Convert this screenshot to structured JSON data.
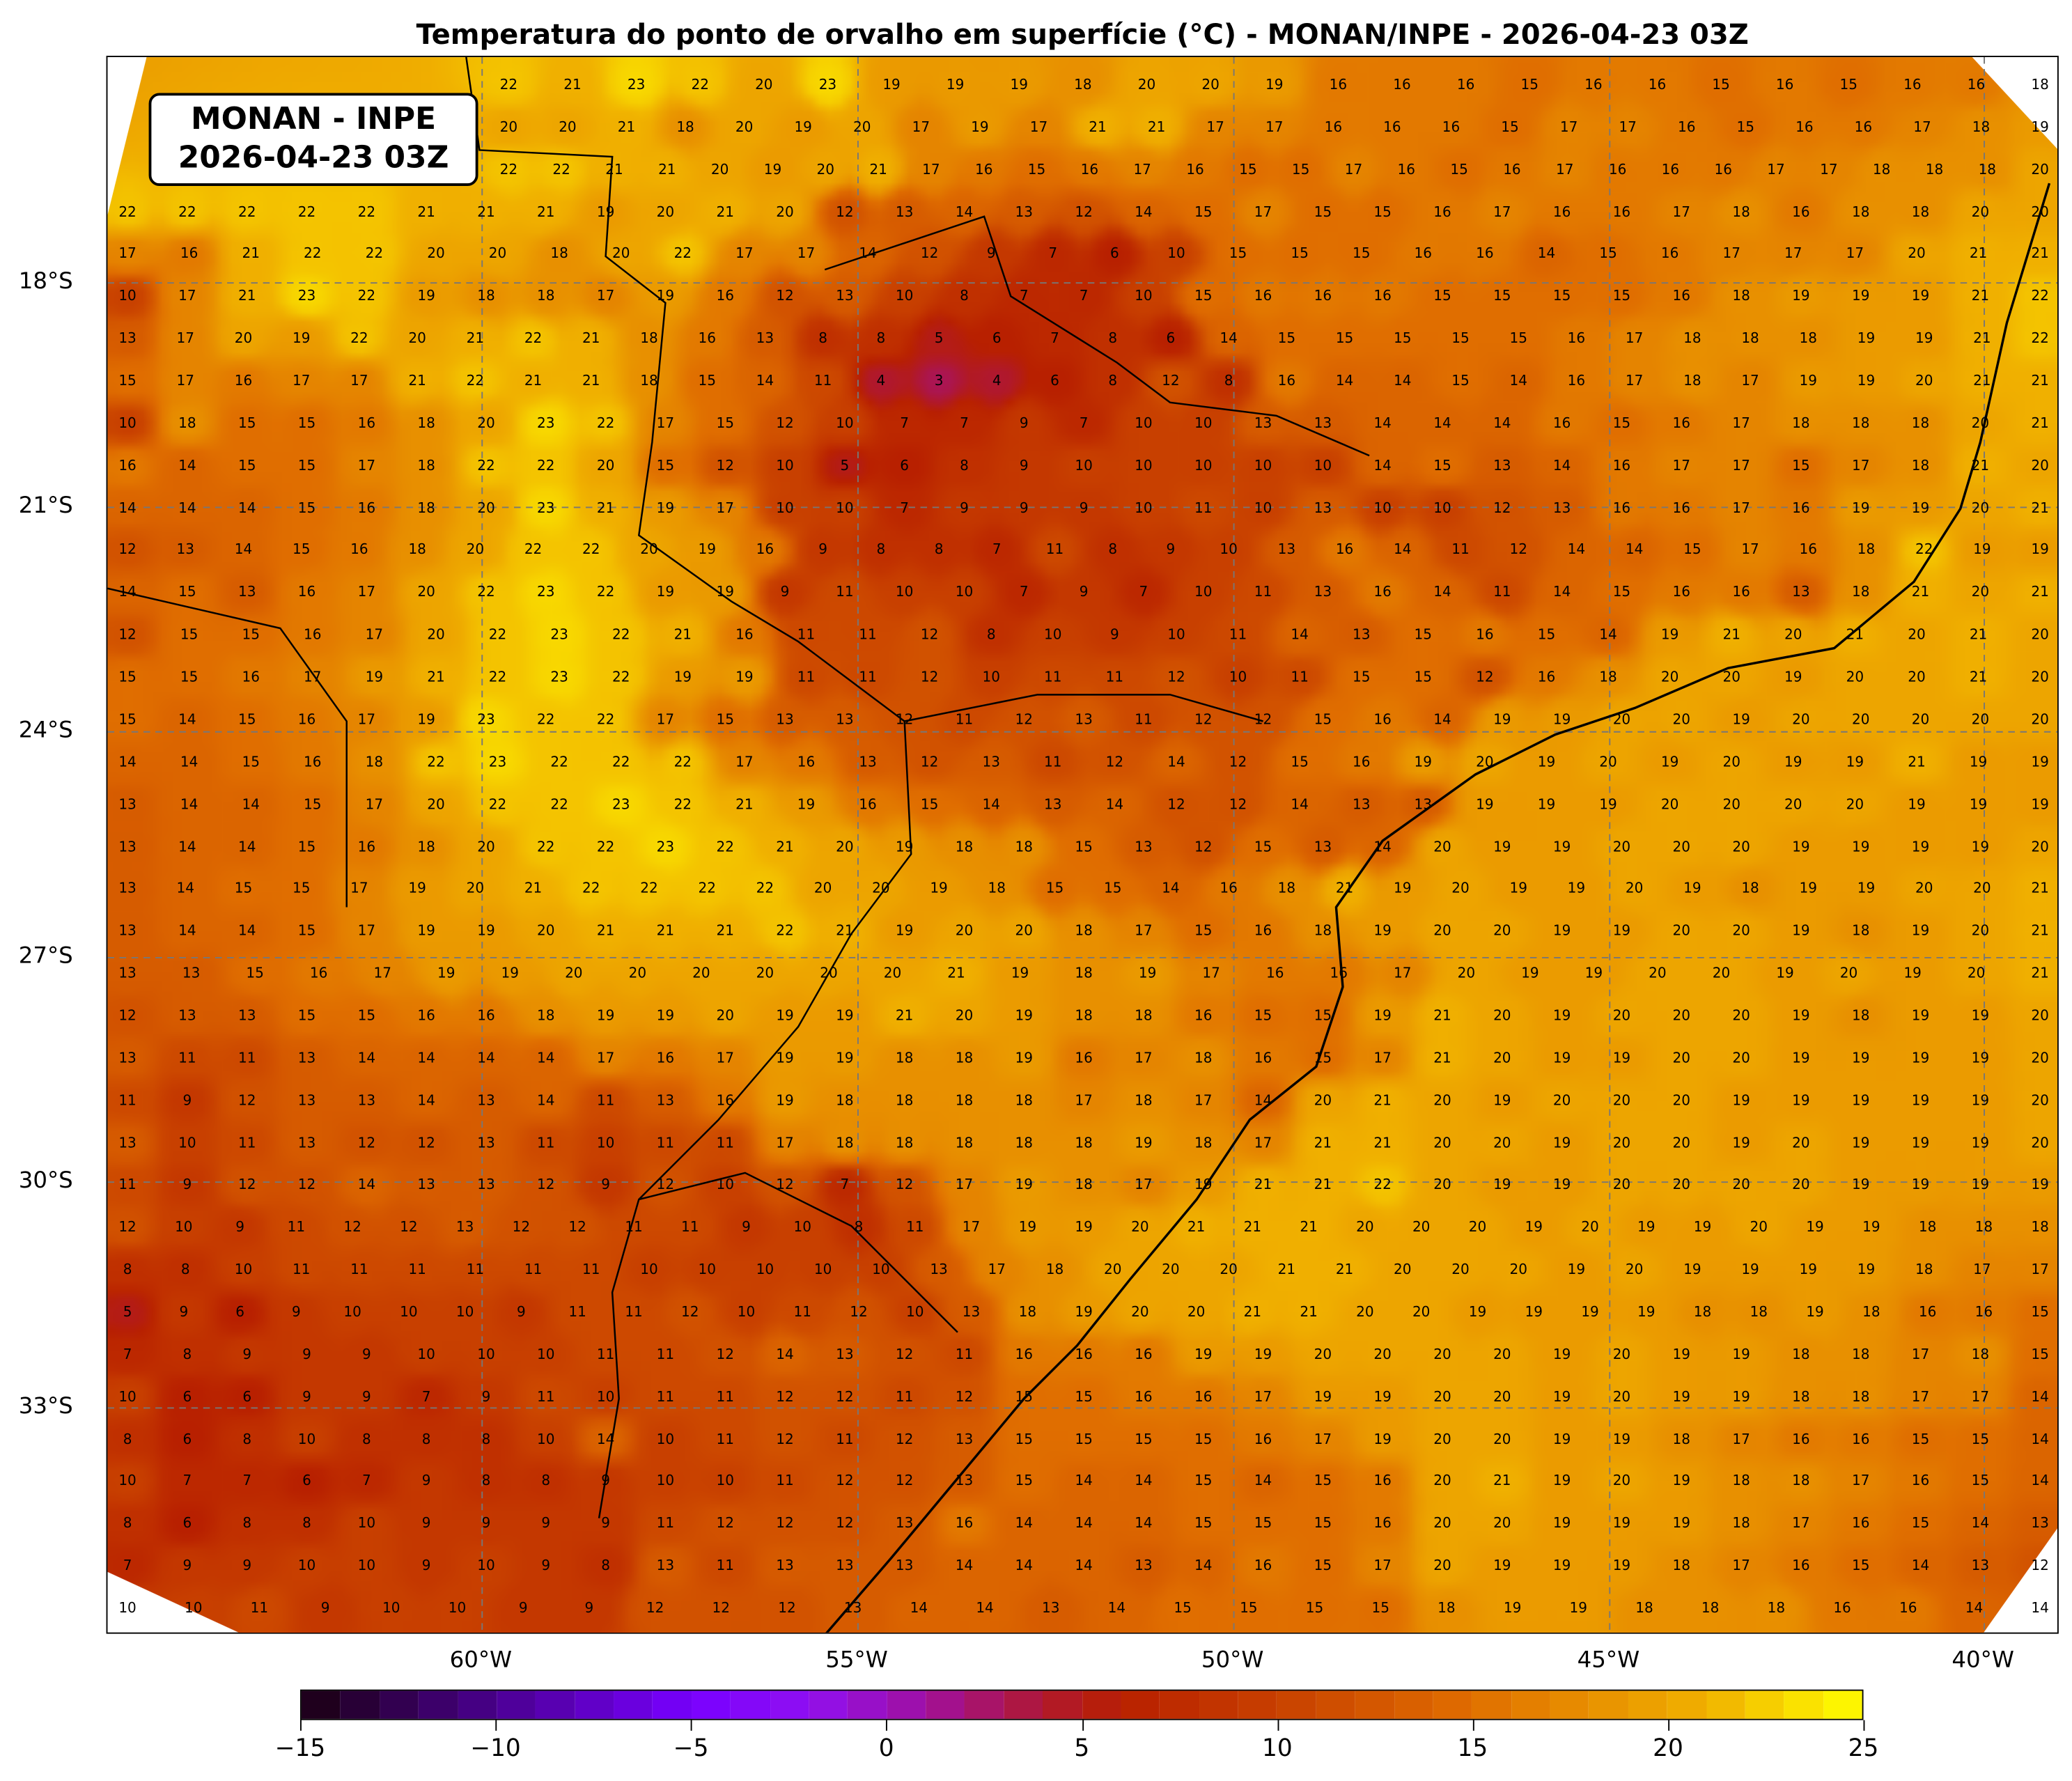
{
  "title": "Temperatura do ponto de orvalho em superfície (°C) - MONAN/INPE - 2026-04-23 03Z",
  "logo": {
    "line1": "MONAN - INPE",
    "line2": "2026-04-23 03Z"
  },
  "map": {
    "latitude_labels": [
      "18°S",
      "21°S",
      "24°S",
      "27°S",
      "30°S",
      "33°S"
    ],
    "longitude_labels": [
      "60°W",
      "55°W",
      "50°W",
      "45°W",
      "40°W"
    ],
    "gridlines": "dashed gray",
    "station_values_rows": [
      [
        22,
        21,
        23,
        22,
        20,
        23,
        19,
        19,
        19,
        18,
        20,
        20,
        19,
        16,
        16,
        16,
        15,
        16,
        16,
        15,
        16,
        15,
        16,
        16,
        18
      ],
      [
        20,
        20,
        21,
        18,
        20,
        19,
        20,
        17,
        19,
        17,
        21,
        21,
        17,
        17,
        16,
        16,
        16,
        15,
        17,
        17,
        16,
        15,
        16,
        16,
        17,
        18,
        19
      ],
      [
        22,
        22,
        21,
        21,
        20,
        19,
        20,
        21,
        17,
        16,
        15,
        16,
        17,
        16,
        15,
        15,
        17,
        16,
        15,
        16,
        17,
        16,
        16,
        16,
        17,
        17,
        18,
        18,
        18,
        20
      ],
      [
        22,
        22,
        22,
        22,
        22,
        21,
        21,
        21,
        19,
        20,
        21,
        20,
        12,
        13,
        14,
        13,
        12,
        14,
        15,
        17,
        15,
        15,
        16,
        17,
        16,
        16,
        17,
        18,
        16,
        18,
        18,
        20,
        20
      ],
      [
        17,
        16,
        21,
        22,
        22,
        20,
        20,
        18,
        20,
        22,
        17,
        17,
        14,
        12,
        9,
        7,
        6,
        10,
        15,
        15,
        15,
        16,
        16,
        14,
        15,
        16,
        17,
        17,
        17,
        20,
        21,
        21
      ],
      [
        10,
        17,
        21,
        23,
        22,
        19,
        18,
        18,
        17,
        19,
        16,
        12,
        13,
        10,
        8,
        7,
        7,
        10,
        15,
        16,
        16,
        16,
        15,
        15,
        15,
        15,
        16,
        18,
        19,
        19,
        19,
        21,
        22
      ],
      [
        13,
        17,
        20,
        19,
        22,
        20,
        21,
        22,
        21,
        18,
        16,
        13,
        8,
        8,
        5,
        6,
        7,
        8,
        6,
        14,
        15,
        15,
        15,
        15,
        15,
        16,
        17,
        18,
        18,
        18,
        19,
        19,
        21,
        22
      ],
      [
        15,
        17,
        16,
        17,
        17,
        21,
        22,
        21,
        21,
        18,
        15,
        14,
        11,
        4,
        3,
        4,
        6,
        8,
        12,
        8,
        16,
        14,
        14,
        15,
        14,
        16,
        17,
        18,
        17,
        19,
        19,
        20,
        21,
        21
      ],
      [
        10,
        18,
        15,
        15,
        16,
        18,
        20,
        23,
        22,
        17,
        15,
        12,
        10,
        7,
        7,
        9,
        7,
        10,
        10,
        13,
        13,
        14,
        14,
        14,
        16,
        15,
        16,
        17,
        18,
        18,
        18,
        20,
        21
      ],
      [
        16,
        14,
        15,
        15,
        17,
        18,
        22,
        22,
        20,
        15,
        12,
        10,
        5,
        6,
        8,
        9,
        10,
        10,
        10,
        10,
        10,
        14,
        15,
        13,
        14,
        16,
        17,
        17,
        15,
        17,
        18,
        21,
        20
      ],
      [
        14,
        14,
        14,
        15,
        16,
        18,
        20,
        23,
        21,
        19,
        17,
        10,
        10,
        7,
        9,
        9,
        9,
        10,
        11,
        10,
        13,
        10,
        10,
        12,
        13,
        16,
        16,
        17,
        16,
        19,
        19,
        20,
        21
      ],
      [
        12,
        13,
        14,
        15,
        16,
        18,
        20,
        22,
        22,
        20,
        19,
        16,
        9,
        8,
        8,
        7,
        11,
        8,
        9,
        10,
        13,
        16,
        14,
        11,
        12,
        14,
        14,
        15,
        17,
        16,
        18,
        22,
        19,
        19
      ],
      [
        14,
        15,
        13,
        16,
        17,
        20,
        22,
        23,
        22,
        19,
        19,
        9,
        11,
        10,
        10,
        7,
        9,
        7,
        10,
        11,
        13,
        16,
        14,
        11,
        14,
        15,
        16,
        16,
        13,
        18,
        21,
        20,
        21
      ],
      [
        12,
        15,
        15,
        16,
        17,
        20,
        22,
        23,
        22,
        21,
        16,
        11,
        11,
        12,
        8,
        10,
        9,
        10,
        11,
        14,
        13,
        15,
        16,
        15,
        14,
        19,
        21,
        20,
        21,
        20,
        21,
        20
      ],
      [
        15,
        15,
        16,
        17,
        19,
        21,
        22,
        23,
        22,
        19,
        19,
        11,
        11,
        12,
        10,
        11,
        11,
        12,
        10,
        11,
        15,
        15,
        12,
        16,
        18,
        20,
        20,
        19,
        20,
        20,
        21,
        20
      ],
      [
        15,
        14,
        15,
        16,
        17,
        19,
        23,
        22,
        22,
        17,
        15,
        13,
        13,
        12,
        11,
        12,
        13,
        11,
        12,
        12,
        15,
        16,
        14,
        19,
        19,
        20,
        20,
        19,
        20,
        20,
        20,
        20,
        20
      ],
      [
        14,
        14,
        15,
        16,
        18,
        22,
        23,
        22,
        22,
        22,
        17,
        16,
        13,
        12,
        13,
        11,
        12,
        14,
        12,
        15,
        16,
        19,
        20,
        19,
        20,
        19,
        20,
        19,
        19,
        21,
        19,
        19
      ],
      [
        13,
        14,
        14,
        15,
        17,
        20,
        22,
        22,
        23,
        22,
        21,
        19,
        16,
        15,
        14,
        13,
        14,
        12,
        12,
        14,
        13,
        13,
        19,
        19,
        19,
        20,
        20,
        20,
        20,
        19,
        19,
        19
      ],
      [
        13,
        14,
        14,
        15,
        16,
        18,
        20,
        22,
        22,
        23,
        22,
        21,
        20,
        19,
        18,
        18,
        15,
        13,
        12,
        15,
        13,
        14,
        20,
        19,
        19,
        20,
        20,
        20,
        19,
        19,
        19,
        19,
        20
      ],
      [
        13,
        14,
        15,
        15,
        17,
        19,
        20,
        21,
        22,
        22,
        22,
        22,
        20,
        20,
        19,
        18,
        15,
        15,
        14,
        16,
        18,
        21,
        19,
        20,
        19,
        19,
        20,
        19,
        18,
        19,
        19,
        20,
        20,
        21
      ],
      [
        13,
        14,
        14,
        15,
        17,
        19,
        19,
        20,
        21,
        21,
        21,
        22,
        21,
        19,
        20,
        20,
        18,
        17,
        15,
        16,
        18,
        19,
        20,
        20,
        19,
        19,
        20,
        20,
        19,
        18,
        19,
        20,
        21
      ],
      [
        13,
        13,
        15,
        16,
        17,
        19,
        19,
        20,
        20,
        20,
        20,
        20,
        20,
        21,
        19,
        18,
        19,
        17,
        16,
        16,
        17,
        20,
        19,
        19,
        20,
        20,
        19,
        20,
        19,
        20,
        21
      ],
      [
        12,
        13,
        13,
        15,
        15,
        16,
        16,
        18,
        19,
        19,
        20,
        19,
        19,
        21,
        20,
        19,
        18,
        18,
        16,
        15,
        15,
        19,
        21,
        20,
        19,
        20,
        20,
        20,
        19,
        18,
        19,
        19,
        20
      ],
      [
        13,
        11,
        11,
        13,
        14,
        14,
        14,
        14,
        17,
        16,
        17,
        19,
        19,
        18,
        18,
        19,
        16,
        17,
        18,
        16,
        15,
        17,
        21,
        20,
        19,
        19,
        20,
        20,
        19,
        19,
        19,
        19,
        20
      ],
      [
        11,
        9,
        12,
        13,
        13,
        14,
        13,
        14,
        11,
        13,
        16,
        19,
        18,
        18,
        18,
        18,
        17,
        18,
        17,
        14,
        20,
        21,
        20,
        19,
        20,
        20,
        20,
        19,
        19,
        19,
        19,
        19,
        20
      ],
      [
        13,
        10,
        11,
        13,
        12,
        12,
        13,
        11,
        10,
        11,
        11,
        17,
        18,
        18,
        18,
        18,
        18,
        19,
        18,
        17,
        21,
        21,
        20,
        20,
        19,
        20,
        20,
        19,
        20,
        19,
        19,
        19,
        20
      ],
      [
        11,
        9,
        12,
        12,
        14,
        13,
        13,
        12,
        9,
        12,
        10,
        12,
        7,
        12,
        17,
        19,
        18,
        17,
        19,
        21,
        21,
        22,
        20,
        19,
        19,
        20,
        20,
        20,
        20,
        19,
        19,
        19,
        19
      ],
      [
        12,
        10,
        9,
        11,
        12,
        12,
        13,
        12,
        12,
        11,
        11,
        9,
        10,
        8,
        11,
        17,
        19,
        19,
        20,
        21,
        21,
        21,
        20,
        20,
        20,
        19,
        20,
        19,
        19,
        20,
        19,
        19,
        18,
        18,
        18
      ],
      [
        8,
        8,
        10,
        11,
        11,
        11,
        11,
        11,
        11,
        10,
        10,
        10,
        10,
        10,
        13,
        17,
        18,
        20,
        20,
        20,
        21,
        21,
        20,
        20,
        20,
        19,
        20,
        19,
        19,
        19,
        19,
        18,
        17,
        17
      ],
      [
        5,
        9,
        6,
        9,
        10,
        10,
        10,
        9,
        11,
        11,
        12,
        10,
        11,
        12,
        10,
        13,
        18,
        19,
        20,
        20,
        21,
        21,
        20,
        20,
        19,
        19,
        19,
        19,
        18,
        18,
        19,
        18,
        16,
        16,
        15
      ],
      [
        7,
        8,
        9,
        9,
        9,
        10,
        10,
        10,
        11,
        11,
        12,
        14,
        13,
        12,
        11,
        16,
        16,
        16,
        19,
        19,
        20,
        20,
        20,
        20,
        19,
        20,
        19,
        19,
        18,
        18,
        17,
        18,
        15
      ],
      [
        10,
        6,
        6,
        9,
        9,
        7,
        9,
        11,
        10,
        11,
        11,
        12,
        12,
        11,
        12,
        15,
        15,
        16,
        16,
        17,
        19,
        19,
        20,
        20,
        19,
        20,
        19,
        19,
        18,
        18,
        17,
        17,
        14
      ],
      [
        8,
        6,
        8,
        10,
        8,
        8,
        8,
        10,
        14,
        10,
        11,
        12,
        11,
        12,
        13,
        15,
        15,
        15,
        15,
        16,
        17,
        19,
        20,
        20,
        19,
        19,
        18,
        17,
        16,
        16,
        15,
        15,
        14
      ],
      [
        10,
        7,
        7,
        6,
        7,
        9,
        8,
        8,
        9,
        10,
        10,
        11,
        12,
        12,
        13,
        15,
        14,
        14,
        15,
        14,
        15,
        16,
        20,
        21,
        19,
        20,
        19,
        18,
        18,
        17,
        16,
        15,
        14
      ],
      [
        8,
        6,
        8,
        8,
        10,
        9,
        9,
        9,
        9,
        11,
        12,
        12,
        12,
        13,
        16,
        14,
        14,
        14,
        15,
        15,
        15,
        16,
        20,
        20,
        19,
        19,
        19,
        18,
        17,
        16,
        15,
        14,
        13
      ],
      [
        7,
        9,
        9,
        10,
        10,
        9,
        10,
        9,
        8,
        13,
        11,
        13,
        13,
        13,
        14,
        14,
        14,
        13,
        14,
        16,
        15,
        17,
        20,
        19,
        19,
        19,
        18,
        17,
        16,
        15,
        14,
        13,
        12
      ],
      [
        10,
        10,
        11,
        9,
        10,
        10,
        9,
        9,
        12,
        12,
        12,
        13,
        14,
        14,
        13,
        14,
        15,
        15,
        15,
        15,
        18,
        19,
        19,
        18,
        18,
        18,
        16,
        16,
        14,
        14
      ]
    ]
  },
  "colorbar": {
    "min": -15,
    "max": 25,
    "levels": 40,
    "tick_labels": [
      "−15",
      "−10",
      "−5",
      "0",
      "5",
      "10",
      "15",
      "20",
      "25"
    ],
    "colormap_stops": [
      [
        -15,
        "#1a0010"
      ],
      [
        -10,
        "#4a0090"
      ],
      [
        -5,
        "#7800ff"
      ],
      [
        -2,
        "#9010f0"
      ],
      [
        1,
        "#a010a0"
      ],
      [
        4,
        "#b01830"
      ],
      [
        6,
        "#b82000"
      ],
      [
        10,
        "#c84000"
      ],
      [
        15,
        "#e06e00"
      ],
      [
        18,
        "#e89000"
      ],
      [
        21,
        "#f0b000"
      ],
      [
        23,
        "#f8d800"
      ],
      [
        25,
        "#ffff00"
      ]
    ]
  }
}
